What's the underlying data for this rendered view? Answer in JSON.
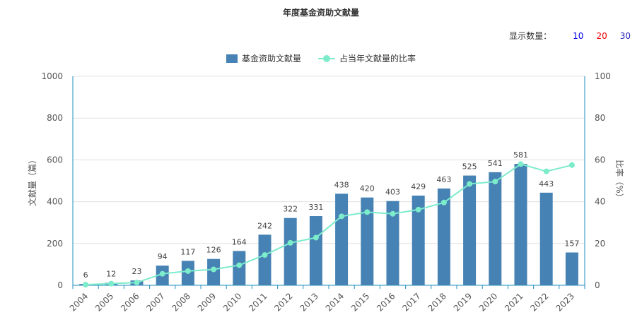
{
  "chart_data": {
    "type": "bar",
    "title": "年度基金资助文献量",
    "categories": [
      "2004",
      "2005",
      "2006",
      "2007",
      "2008",
      "2009",
      "2010",
      "2011",
      "2012",
      "2013",
      "2014",
      "2015",
      "2016",
      "2017",
      "2018",
      "2019",
      "2020",
      "2021",
      "2022",
      "2023"
    ],
    "series": [
      {
        "name": "基金资助文献量",
        "type": "bar",
        "axis": "left",
        "values": [
          6,
          12,
          23,
          94,
          117,
          126,
          164,
          242,
          322,
          331,
          438,
          420,
          403,
          429,
          463,
          525,
          541,
          581,
          443,
          157
        ]
      },
      {
        "name": "占当年文献量的比率",
        "type": "line",
        "axis": "right",
        "values": [
          0.3,
          0.8,
          1.3,
          5.5,
          6.8,
          7.6,
          9.6,
          14.5,
          20.3,
          22.8,
          33.0,
          35.0,
          34.2,
          36.2,
          39.6,
          48.5,
          49.6,
          58.0,
          54.5,
          57.5
        ]
      }
    ],
    "ylabel": "文献量（篇）",
    "y2label": "比率（%）",
    "ylim": [
      0,
      1000
    ],
    "y2lim": [
      0,
      100
    ],
    "yticks": [
      "0",
      "200",
      "400",
      "600",
      "800",
      "1000"
    ],
    "y2ticks": [
      "0",
      "20",
      "40",
      "60",
      "80",
      "100"
    ],
    "grid": true,
    "legend_position": "top-center",
    "colors": {
      "bar": "#4682b4",
      "line": "#7ceccb",
      "axis": "#1f8fbf",
      "grid": "#e0e0e0"
    }
  },
  "controls": {
    "display_count_label": "显示数量：",
    "options": [
      {
        "label": "10",
        "color": "#0000ee"
      },
      {
        "label": "20",
        "color": "#ee0000"
      },
      {
        "label": "30",
        "color": "#2222bb"
      }
    ]
  }
}
